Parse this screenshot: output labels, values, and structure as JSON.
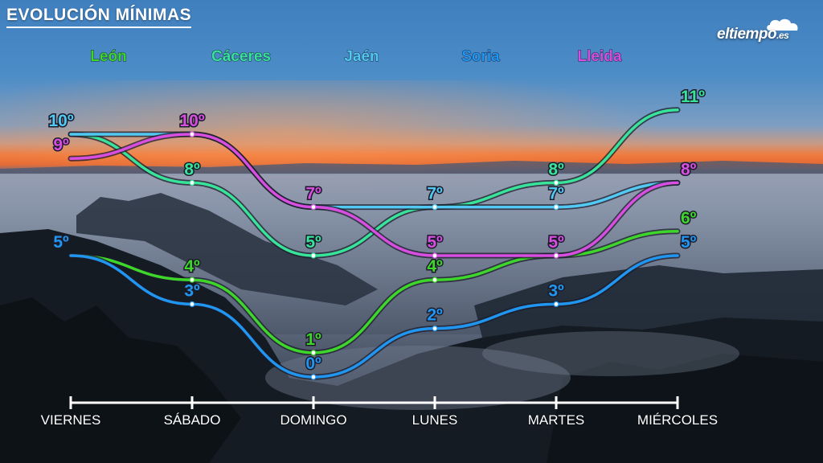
{
  "title": "EVOLUCIÓN MÍNIMAS",
  "logo": {
    "name": "eltiempo",
    "tld": ".es"
  },
  "chart_data": {
    "type": "line",
    "title": "EVOLUCIÓN MÍNIMAS",
    "unit": "º",
    "categories": [
      "VIERNES",
      "SÁBADO",
      "DOMINGO",
      "LUNES",
      "MARTES",
      "MIÉRCOLES"
    ],
    "legend_position": "top",
    "grid": false,
    "series": [
      {
        "name": "León",
        "color": "#3ed62b",
        "values": [
          5,
          4,
          1,
          4,
          5,
          6
        ]
      },
      {
        "name": "Cáceres",
        "color": "#38e39a",
        "values": [
          10,
          8,
          5,
          7,
          8,
          11
        ]
      },
      {
        "name": "Jaén",
        "color": "#52c9f2",
        "values": [
          10,
          10,
          7,
          7,
          7,
          8
        ]
      },
      {
        "name": "Soria",
        "color": "#2196f0",
        "values": [
          5,
          3,
          0,
          2,
          3,
          5
        ]
      },
      {
        "name": "Lleida",
        "color": "#d74ee0",
        "values": [
          9,
          10,
          7,
          5,
          5,
          8
        ]
      }
    ]
  }
}
